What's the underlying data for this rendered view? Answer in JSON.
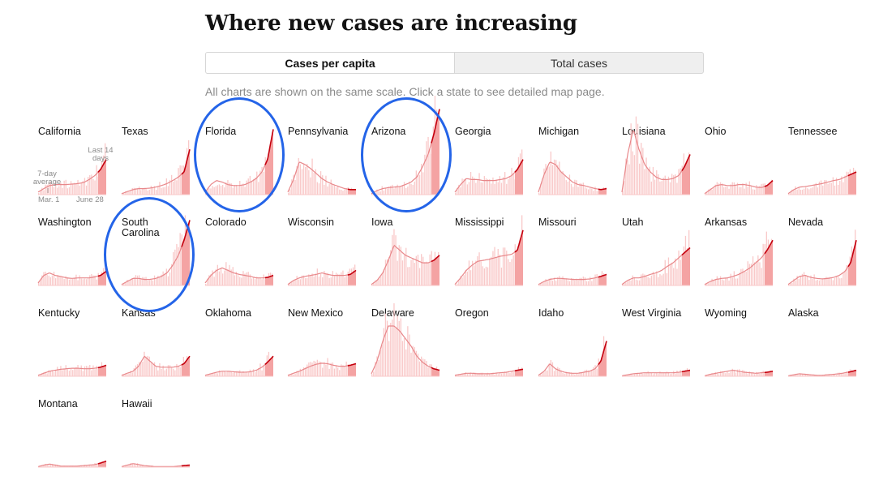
{
  "header": {
    "title": "Where new cases are increasing",
    "note": "All charts are shown on the same scale. Click a state to see detailed map page."
  },
  "toggle": {
    "options": [
      "Cases per capita",
      "Total cases"
    ],
    "selected": "Cases per capita"
  },
  "legend": {
    "last14": "Last 14 days",
    "avg": "7-day average",
    "start": "Mar. 1",
    "end": "June 28"
  },
  "colors": {
    "bars": "#f9c9c9",
    "avg_line": "#e8878a",
    "recent_fill": "#f4a3a3",
    "recent_line": "#c4000e",
    "highlight_circle": "#2464e8"
  },
  "chart_data": {
    "type": "area",
    "x_range": [
      "Mar. 1",
      "June 28"
    ],
    "shared_scale": true,
    "highlighted": [
      "Florida",
      "Arizona",
      "South Carolina"
    ],
    "states": [
      {
        "name": "California",
        "values": [
          0.05,
          0.12,
          0.18,
          0.2,
          0.2,
          0.2,
          0.21,
          0.22,
          0.24,
          0.3,
          0.38,
          0.5,
          0.7
        ]
      },
      {
        "name": "Texas",
        "values": [
          0.02,
          0.06,
          0.1,
          0.12,
          0.12,
          0.13,
          0.15,
          0.18,
          0.22,
          0.28,
          0.35,
          0.45,
          0.9
        ]
      },
      {
        "name": "Florida",
        "values": [
          0.05,
          0.2,
          0.28,
          0.25,
          0.2,
          0.18,
          0.18,
          0.2,
          0.25,
          0.32,
          0.45,
          0.7,
          1.3
        ]
      },
      {
        "name": "Pennsylvania",
        "values": [
          0.05,
          0.3,
          0.65,
          0.6,
          0.52,
          0.42,
          0.32,
          0.25,
          0.2,
          0.16,
          0.12,
          0.1,
          0.1
        ]
      },
      {
        "name": "Arizona",
        "values": [
          0.02,
          0.08,
          0.12,
          0.14,
          0.15,
          0.16,
          0.2,
          0.25,
          0.35,
          0.55,
          0.8,
          1.2,
          1.7
        ]
      },
      {
        "name": "Georgia",
        "values": [
          0.05,
          0.2,
          0.32,
          0.3,
          0.3,
          0.28,
          0.28,
          0.28,
          0.3,
          0.32,
          0.38,
          0.5,
          0.7
        ]
      },
      {
        "name": "Michigan",
        "values": [
          0.05,
          0.4,
          0.65,
          0.6,
          0.45,
          0.35,
          0.25,
          0.2,
          0.18,
          0.15,
          0.12,
          0.1,
          0.12
        ]
      },
      {
        "name": "Louisiana",
        "values": [
          0.05,
          0.8,
          1.3,
          0.9,
          0.6,
          0.45,
          0.35,
          0.3,
          0.3,
          0.32,
          0.38,
          0.55,
          0.8
        ]
      },
      {
        "name": "Ohio",
        "values": [
          0.02,
          0.1,
          0.18,
          0.2,
          0.18,
          0.18,
          0.2,
          0.2,
          0.18,
          0.15,
          0.14,
          0.18,
          0.28
        ]
      },
      {
        "name": "Tennessee",
        "values": [
          0.02,
          0.1,
          0.15,
          0.16,
          0.18,
          0.2,
          0.22,
          0.25,
          0.28,
          0.3,
          0.35,
          0.4,
          0.45
        ]
      },
      {
        "name": "Washington",
        "values": [
          0.05,
          0.2,
          0.25,
          0.2,
          0.18,
          0.15,
          0.14,
          0.15,
          0.15,
          0.15,
          0.17,
          0.2,
          0.28
        ]
      },
      {
        "name": "South Carolina",
        "values": [
          0.02,
          0.08,
          0.14,
          0.14,
          0.12,
          0.12,
          0.14,
          0.18,
          0.25,
          0.4,
          0.6,
          0.9,
          1.3
        ]
      },
      {
        "name": "Colorado",
        "values": [
          0.05,
          0.2,
          0.3,
          0.35,
          0.3,
          0.25,
          0.22,
          0.2,
          0.18,
          0.15,
          0.15,
          0.16,
          0.2
        ]
      },
      {
        "name": "Wisconsin",
        "values": [
          0.02,
          0.1,
          0.15,
          0.18,
          0.2,
          0.22,
          0.25,
          0.22,
          0.2,
          0.2,
          0.2,
          0.22,
          0.3
        ]
      },
      {
        "name": "Iowa",
        "values": [
          0.02,
          0.1,
          0.25,
          0.5,
          0.8,
          0.7,
          0.6,
          0.55,
          0.5,
          0.45,
          0.45,
          0.5,
          0.6
        ]
      },
      {
        "name": "Mississippi",
        "values": [
          0.02,
          0.15,
          0.3,
          0.4,
          0.48,
          0.5,
          0.52,
          0.55,
          0.58,
          0.6,
          0.62,
          0.7,
          1.1
        ]
      },
      {
        "name": "Missouri",
        "values": [
          0.02,
          0.08,
          0.12,
          0.14,
          0.14,
          0.13,
          0.12,
          0.12,
          0.12,
          0.13,
          0.15,
          0.18,
          0.22
        ]
      },
      {
        "name": "Utah",
        "values": [
          0.02,
          0.1,
          0.15,
          0.15,
          0.18,
          0.22,
          0.25,
          0.3,
          0.38,
          0.45,
          0.55,
          0.65,
          0.75
        ]
      },
      {
        "name": "Arkansas",
        "values": [
          0.02,
          0.08,
          0.12,
          0.14,
          0.15,
          0.18,
          0.22,
          0.28,
          0.35,
          0.45,
          0.55,
          0.7,
          0.9
        ]
      },
      {
        "name": "Nevada",
        "values": [
          0.02,
          0.1,
          0.18,
          0.2,
          0.16,
          0.14,
          0.13,
          0.14,
          0.16,
          0.2,
          0.28,
          0.45,
          0.9
        ]
      },
      {
        "name": "Kentucky",
        "values": [
          0.02,
          0.06,
          0.1,
          0.12,
          0.14,
          0.15,
          0.16,
          0.16,
          0.15,
          0.15,
          0.16,
          0.18,
          0.22
        ]
      },
      {
        "name": "Kansas",
        "values": [
          0.02,
          0.06,
          0.1,
          0.2,
          0.4,
          0.3,
          0.2,
          0.18,
          0.18,
          0.18,
          0.2,
          0.25,
          0.4
        ]
      },
      {
        "name": "Oklahoma",
        "values": [
          0.02,
          0.05,
          0.08,
          0.1,
          0.1,
          0.09,
          0.08,
          0.08,
          0.09,
          0.12,
          0.18,
          0.28,
          0.4
        ]
      },
      {
        "name": "New Mexico",
        "values": [
          0.02,
          0.06,
          0.1,
          0.15,
          0.2,
          0.24,
          0.26,
          0.25,
          0.22,
          0.2,
          0.2,
          0.22,
          0.25
        ]
      },
      {
        "name": "Delaware",
        "values": [
          0.05,
          0.3,
          0.7,
          1.0,
          1.0,
          0.9,
          0.75,
          0.6,
          0.4,
          0.28,
          0.2,
          0.15,
          0.12
        ]
      },
      {
        "name": "Oregon",
        "values": [
          0.02,
          0.04,
          0.06,
          0.06,
          0.05,
          0.05,
          0.05,
          0.06,
          0.07,
          0.08,
          0.1,
          0.12,
          0.14
        ]
      },
      {
        "name": "Idaho",
        "values": [
          0.02,
          0.1,
          0.25,
          0.15,
          0.1,
          0.07,
          0.06,
          0.06,
          0.08,
          0.1,
          0.15,
          0.3,
          0.7
        ]
      },
      {
        "name": "West Virginia",
        "values": [
          0.01,
          0.03,
          0.05,
          0.06,
          0.07,
          0.07,
          0.07,
          0.07,
          0.07,
          0.07,
          0.08,
          0.1,
          0.12
        ]
      },
      {
        "name": "Wyoming",
        "values": [
          0.01,
          0.04,
          0.06,
          0.08,
          0.1,
          0.12,
          0.1,
          0.08,
          0.07,
          0.06,
          0.07,
          0.08,
          0.1
        ]
      },
      {
        "name": "Alaska",
        "values": [
          0.01,
          0.03,
          0.05,
          0.04,
          0.03,
          0.02,
          0.02,
          0.03,
          0.04,
          0.05,
          0.07,
          0.09,
          0.12
        ]
      },
      {
        "name": "Montana",
        "values": [
          0.01,
          0.04,
          0.06,
          0.04,
          0.02,
          0.02,
          0.02,
          0.02,
          0.03,
          0.04,
          0.05,
          0.08,
          0.12
        ]
      },
      {
        "name": "Hawaii",
        "values": [
          0.01,
          0.04,
          0.07,
          0.05,
          0.03,
          0.02,
          0.01,
          0.01,
          0.01,
          0.01,
          0.02,
          0.03,
          0.04
        ]
      }
    ]
  }
}
